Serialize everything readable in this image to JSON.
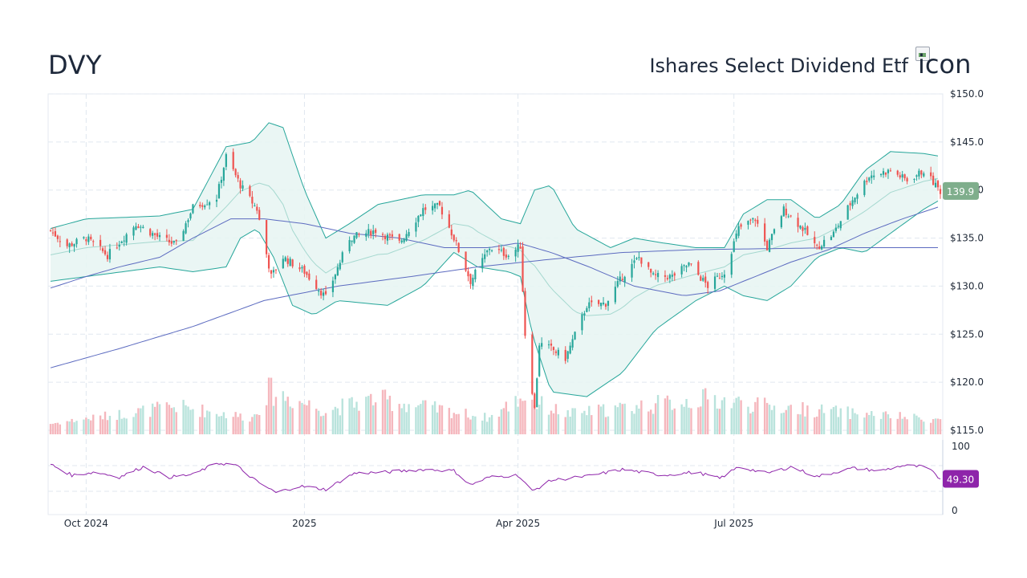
{
  "header": {
    "ticker": "DVY",
    "fund_name": "Ishares Select Dividend Etf",
    "logo_alt": "icon"
  },
  "colors": {
    "up": "#26a69a",
    "down": "#ef5350",
    "bollinger": "#26a69a",
    "bollinger_fill": "#e6f4f2",
    "sma": "#5c6bc0",
    "rsi": "#8e24aa",
    "grid": "#e0e7ef",
    "last_price_badge": "#7fae8c",
    "rsi_badge": "#8e24aa"
  },
  "chart_data": [
    {
      "type": "candlestick",
      "title": "",
      "ylim": [
        115,
        150
      ],
      "y_ticks": [
        "$150.0",
        "$145.0",
        "$140.0",
        "$135.0",
        "$130.0",
        "$125.0",
        "$120.0",
        "$115.0"
      ],
      "y_tick_values": [
        150,
        145,
        140,
        135,
        130,
        125,
        120,
        115
      ],
      "x_ticks": [
        "Oct 2024",
        "2025",
        "Apr 2025",
        "Jul 2025"
      ],
      "x_range": [
        "2024-09-16",
        "2025-09-26"
      ],
      "x_tick_dates": [
        "2024-10-01",
        "2025-01-01",
        "2025-04-01",
        "2025-07-01"
      ],
      "last_price_label": "139.9",
      "series": [
        {
          "name": "close",
          "anchors": [
            [
              "2024-09-16",
              135.8
            ],
            [
              "2024-09-23",
              134.2
            ],
            [
              "2024-10-01",
              135.0
            ],
            [
              "2024-10-10",
              133.2
            ],
            [
              "2024-10-22",
              136.5
            ],
            [
              "2024-11-01",
              135.0
            ],
            [
              "2024-11-08",
              134.3
            ],
            [
              "2024-11-15",
              138.2
            ],
            [
              "2024-11-25",
              139.2
            ],
            [
              "2024-11-29",
              143.5
            ],
            [
              "2024-12-05",
              140.5
            ],
            [
              "2024-12-12",
              138.0
            ],
            [
              "2024-12-18",
              131.0
            ],
            [
              "2024-12-23",
              133.0
            ],
            [
              "2025-01-01",
              131.5
            ],
            [
              "2025-01-10",
              128.8
            ],
            [
              "2025-01-20",
              135.0
            ],
            [
              "2025-01-31",
              135.8
            ],
            [
              "2025-02-10",
              134.5
            ],
            [
              "2025-02-20",
              138.0
            ],
            [
              "2025-02-27",
              138.3
            ],
            [
              "2025-03-05",
              135.0
            ],
            [
              "2025-03-12",
              130.5
            ],
            [
              "2025-03-20",
              134.0
            ],
            [
              "2025-03-28",
              133.2
            ],
            [
              "2025-04-02",
              134.2
            ],
            [
              "2025-04-04",
              125.0
            ],
            [
              "2025-04-08",
              117.2
            ],
            [
              "2025-04-10",
              124.0
            ],
            [
              "2025-04-15",
              123.5
            ],
            [
              "2025-04-21",
              122.5
            ],
            [
              "2025-04-30",
              128.0
            ],
            [
              "2025-05-08",
              128.2
            ],
            [
              "2025-05-15",
              131.0
            ],
            [
              "2025-05-22",
              133.0
            ],
            [
              "2025-05-28",
              131.0
            ],
            [
              "2025-06-05",
              131.0
            ],
            [
              "2025-06-12",
              132.3
            ],
            [
              "2025-06-20",
              130.0
            ],
            [
              "2025-06-27",
              131.5
            ],
            [
              "2025-07-03",
              136.0
            ],
            [
              "2025-07-10",
              137.0
            ],
            [
              "2025-07-15",
              134.0
            ],
            [
              "2025-07-22",
              138.0
            ],
            [
              "2025-07-30",
              136.0
            ],
            [
              "2025-08-05",
              134.0
            ],
            [
              "2025-08-12",
              135.5
            ],
            [
              "2025-08-20",
              139.0
            ],
            [
              "2025-08-27",
              141.5
            ],
            [
              "2025-09-05",
              142.0
            ],
            [
              "2025-09-12",
              141.0
            ],
            [
              "2025-09-19",
              142.0
            ],
            [
              "2025-09-26",
              139.9
            ]
          ]
        },
        {
          "name": "bollinger_upper",
          "anchors": [
            [
              "2024-09-16",
              136.0
            ],
            [
              "2024-10-01",
              137.0
            ],
            [
              "2024-11-01",
              137.3
            ],
            [
              "2024-11-15",
              138.0
            ],
            [
              "2024-11-29",
              144.5
            ],
            [
              "2024-12-10",
              145.0
            ],
            [
              "2024-12-17",
              147.0
            ],
            [
              "2024-12-23",
              146.5
            ],
            [
              "2025-01-01",
              140.0
            ],
            [
              "2025-01-10",
              135.0
            ],
            [
              "2025-01-20",
              136.5
            ],
            [
              "2025-02-01",
              138.5
            ],
            [
              "2025-02-20",
              139.5
            ],
            [
              "2025-03-05",
              139.5
            ],
            [
              "2025-03-12",
              140.0
            ],
            [
              "2025-03-25",
              137.0
            ],
            [
              "2025-04-02",
              136.5
            ],
            [
              "2025-04-08",
              140.0
            ],
            [
              "2025-04-15",
              140.5
            ],
            [
              "2025-04-25",
              136.0
            ],
            [
              "2025-05-10",
              134.0
            ],
            [
              "2025-05-20",
              135.0
            ],
            [
              "2025-06-01",
              134.5
            ],
            [
              "2025-06-15",
              134.0
            ],
            [
              "2025-06-27",
              134.0
            ],
            [
              "2025-07-05",
              137.5
            ],
            [
              "2025-07-15",
              139.0
            ],
            [
              "2025-07-25",
              139.0
            ],
            [
              "2025-08-05",
              137.0
            ],
            [
              "2025-08-15",
              138.5
            ],
            [
              "2025-08-25",
              142.0
            ],
            [
              "2025-09-05",
              144.0
            ],
            [
              "2025-09-19",
              143.8
            ],
            [
              "2025-09-26",
              143.5
            ]
          ]
        },
        {
          "name": "bollinger_lower",
          "anchors": [
            [
              "2024-09-16",
              130.5
            ],
            [
              "2024-10-01",
              131.0
            ],
            [
              "2024-11-01",
              132.0
            ],
            [
              "2024-11-15",
              131.5
            ],
            [
              "2024-11-29",
              132.0
            ],
            [
              "2024-12-05",
              135.0
            ],
            [
              "2024-12-12",
              136.0
            ],
            [
              "2024-12-19",
              133.0
            ],
            [
              "2024-12-27",
              128.0
            ],
            [
              "2025-01-05",
              127.0
            ],
            [
              "2025-01-15",
              128.5
            ],
            [
              "2025-02-05",
              128.0
            ],
            [
              "2025-02-20",
              130.0
            ],
            [
              "2025-03-05",
              133.5
            ],
            [
              "2025-03-15",
              132.0
            ],
            [
              "2025-03-28",
              131.5
            ],
            [
              "2025-04-02",
              131.0
            ],
            [
              "2025-04-07",
              125.0
            ],
            [
              "2025-04-15",
              119.0
            ],
            [
              "2025-04-30",
              118.5
            ],
            [
              "2025-05-15",
              121.0
            ],
            [
              "2025-05-29",
              125.5
            ],
            [
              "2025-06-15",
              128.5
            ],
            [
              "2025-06-27",
              130.0
            ],
            [
              "2025-07-05",
              129.0
            ],
            [
              "2025-07-15",
              128.5
            ],
            [
              "2025-07-25",
              130.0
            ],
            [
              "2025-08-05",
              133.0
            ],
            [
              "2025-08-15",
              134.0
            ],
            [
              "2025-08-25",
              133.5
            ],
            [
              "2025-09-05",
              135.5
            ],
            [
              "2025-09-19",
              138.0
            ],
            [
              "2025-09-26",
              139.0
            ]
          ]
        },
        {
          "name": "sma_50",
          "anchors": [
            [
              "2024-09-16",
              129.8
            ],
            [
              "2024-10-01",
              131.0
            ],
            [
              "2024-10-15",
              132.0
            ],
            [
              "2024-11-01",
              133.0
            ],
            [
              "2024-11-15",
              135.0
            ],
            [
              "2024-12-01",
              137.0
            ],
            [
              "2024-12-15",
              137.0
            ],
            [
              "2025-01-01",
              136.5
            ],
            [
              "2025-01-20",
              135.5
            ],
            [
              "2025-02-10",
              135.0
            ],
            [
              "2025-03-01",
              134.0
            ],
            [
              "2025-03-20",
              134.0
            ],
            [
              "2025-04-01",
              134.5
            ],
            [
              "2025-04-15",
              133.5
            ],
            [
              "2025-05-01",
              132.0
            ],
            [
              "2025-05-20",
              130.0
            ],
            [
              "2025-06-10",
              129.0
            ],
            [
              "2025-06-25",
              129.5
            ],
            [
              "2025-07-10",
              131.0
            ],
            [
              "2025-07-25",
              132.5
            ],
            [
              "2025-08-10",
              133.8
            ],
            [
              "2025-08-25",
              135.5
            ],
            [
              "2025-09-10",
              137.0
            ],
            [
              "2025-09-26",
              138.3
            ]
          ]
        },
        {
          "name": "sma_200",
          "anchors": [
            [
              "2024-09-16",
              121.5
            ],
            [
              "2024-10-15",
              123.5
            ],
            [
              "2024-11-15",
              125.8
            ],
            [
              "2024-12-15",
              128.5
            ],
            [
              "2025-01-15",
              130.0
            ],
            [
              "2025-02-15",
              131.0
            ],
            [
              "2025-03-15",
              132.0
            ],
            [
              "2025-04-15",
              132.8
            ],
            [
              "2025-05-15",
              133.5
            ],
            [
              "2025-06-15",
              133.8
            ],
            [
              "2025-07-15",
              133.9
            ],
            [
              "2025-08-15",
              134.0
            ],
            [
              "2025-09-26",
              134.0
            ]
          ]
        }
      ]
    },
    {
      "type": "bar",
      "name": "volume",
      "note_units": "",
      "relative_heights_anchors": [
        [
          "2024-09-16",
          0.15
        ],
        [
          "2024-11-08",
          0.6
        ],
        [
          "2024-12-10",
          0.3
        ],
        [
          "2024-12-17",
          1.0
        ],
        [
          "2025-01-10",
          0.5
        ],
        [
          "2025-01-31",
          0.8
        ],
        [
          "2025-03-20",
          0.3
        ],
        [
          "2025-04-04",
          0.9
        ],
        [
          "2025-04-08",
          0.7
        ],
        [
          "2025-04-22",
          0.4
        ],
        [
          "2025-06-20",
          0.8
        ],
        [
          "2025-07-15",
          0.6
        ],
        [
          "2025-09-26",
          0.25
        ]
      ]
    },
    {
      "type": "line",
      "name": "RSI",
      "ylim": [
        0,
        100
      ],
      "y_ticks": [
        "100",
        "0"
      ],
      "y_tick_values": [
        100,
        0
      ],
      "last_value_label": "49.30",
      "anchors": [
        [
          "2024-09-16",
          72
        ],
        [
          "2024-09-25",
          55
        ],
        [
          "2024-10-05",
          60
        ],
        [
          "2024-10-15",
          52
        ],
        [
          "2024-10-25",
          68
        ],
        [
          "2024-11-05",
          52
        ],
        [
          "2024-11-15",
          56
        ],
        [
          "2024-11-25",
          74
        ],
        [
          "2024-12-03",
          71
        ],
        [
          "2024-12-12",
          45
        ],
        [
          "2024-12-20",
          28
        ],
        [
          "2024-12-30",
          38
        ],
        [
          "2025-01-10",
          33
        ],
        [
          "2025-01-22",
          58
        ],
        [
          "2025-02-05",
          60
        ],
        [
          "2025-02-20",
          64
        ],
        [
          "2025-03-05",
          62
        ],
        [
          "2025-03-12",
          40
        ],
        [
          "2025-03-20",
          52
        ],
        [
          "2025-04-01",
          55
        ],
        [
          "2025-04-07",
          30
        ],
        [
          "2025-04-15",
          47
        ],
        [
          "2025-05-01",
          54
        ],
        [
          "2025-05-15",
          64
        ],
        [
          "2025-06-01",
          55
        ],
        [
          "2025-06-15",
          60
        ],
        [
          "2025-06-25",
          50
        ],
        [
          "2025-07-03",
          68
        ],
        [
          "2025-07-15",
          58
        ],
        [
          "2025-07-25",
          68
        ],
        [
          "2025-08-05",
          53
        ],
        [
          "2025-08-20",
          66
        ],
        [
          "2025-09-01",
          62
        ],
        [
          "2025-09-10",
          70
        ],
        [
          "2025-09-20",
          68
        ],
        [
          "2025-09-26",
          49.3
        ]
      ]
    }
  ]
}
